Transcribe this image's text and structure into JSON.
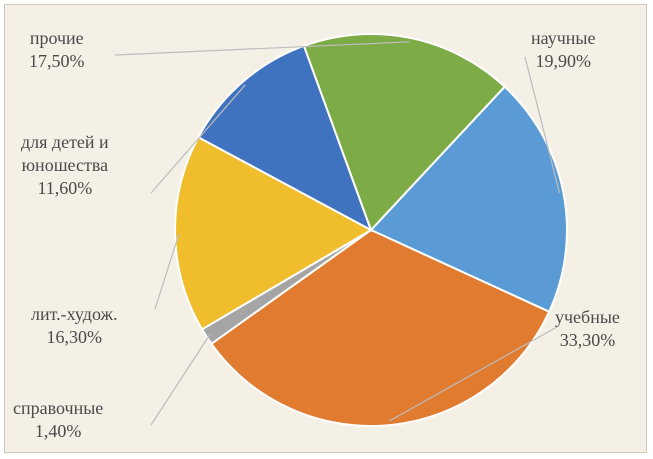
{
  "chart_data": {
    "type": "pie",
    "slices": [
      {
        "label": "научные",
        "value_label": "19,90%",
        "value": 19.9,
        "color": "#5b9bd5"
      },
      {
        "label": "учебные",
        "value_label": "33,30%",
        "value": 33.3,
        "color": "#e07b30"
      },
      {
        "label": "справочные",
        "value_label": "1,40%",
        "value": 1.4,
        "color": "#a5a5a5"
      },
      {
        "label": "лит.-худож.",
        "value_label": "16,30%",
        "value": 16.3,
        "color": "#f0bd2d"
      },
      {
        "label": "для детей и юношества",
        "label_lines": [
          "для детей и",
          "юношества"
        ],
        "value_label": "11,60%",
        "value": 11.6,
        "color": "#3f72bf"
      },
      {
        "label": "прочие",
        "value_label": "17,50%",
        "value": 17.5,
        "color": "#7dab45"
      }
    ],
    "legend": "none",
    "background": "#f4f0e6"
  }
}
